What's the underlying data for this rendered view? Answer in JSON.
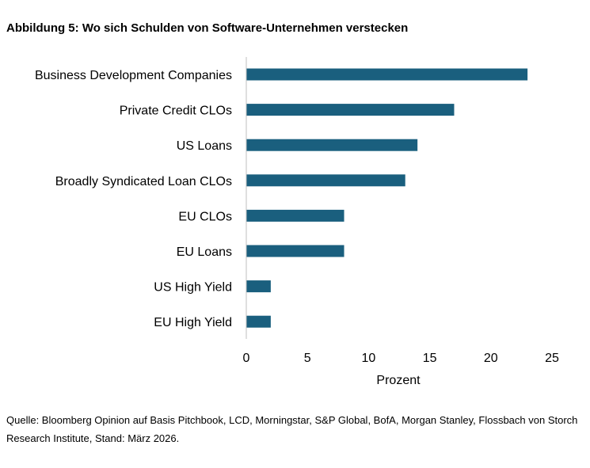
{
  "title": "Abbildung 5: Wo sich Schulden von Software-Unternehmen verstecken",
  "source": "Quelle: Bloomberg Opinion auf Basis Pitchbook, LCD, Morningstar, S&P Global, BofA, Morgan Stanley, Flossbach von Storch Research Institute, Stand: März 2026.",
  "chart_data": {
    "type": "bar",
    "orientation": "horizontal",
    "categories": [
      "Business Development Companies",
      "Private Credit CLOs",
      "US Loans",
      "Broadly Syndicated Loan CLOs",
      "EU CLOs",
      "EU Loans",
      "US High Yield",
      "EU High Yield"
    ],
    "values": [
      23,
      17,
      14,
      13,
      8,
      8,
      2,
      2
    ],
    "xlabel": "Prozent",
    "ylabel": "",
    "xlim": [
      0,
      25
    ],
    "xticks": [
      0,
      5,
      10,
      15,
      20,
      25
    ],
    "bar_color": "#1a5f7e",
    "grid": false
  }
}
